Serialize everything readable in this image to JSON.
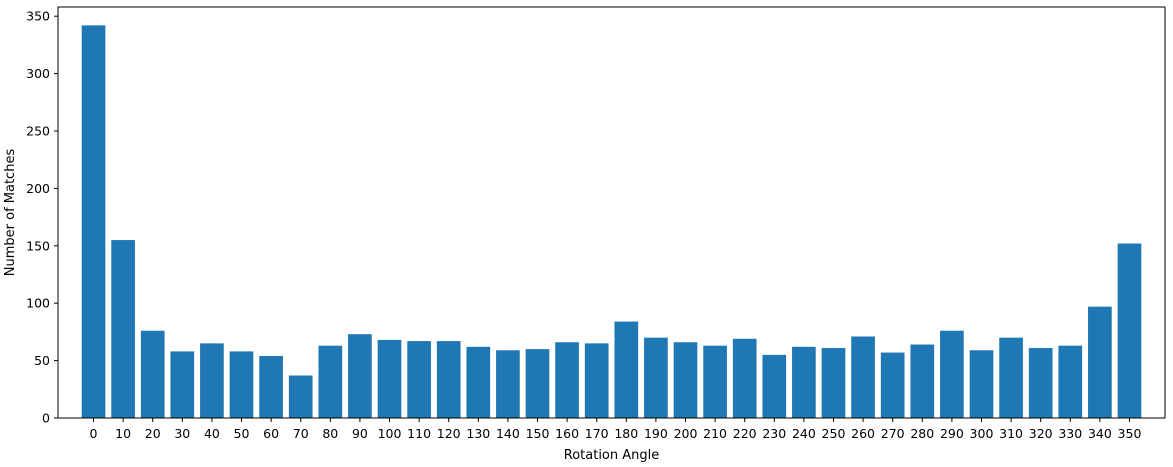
{
  "chart_data": {
    "type": "bar",
    "title": "",
    "xlabel": "Rotation Angle",
    "ylabel": "Number of Matches",
    "categories": [
      "0",
      "10",
      "20",
      "30",
      "40",
      "50",
      "60",
      "70",
      "80",
      "90",
      "100",
      "110",
      "120",
      "130",
      "140",
      "150",
      "160",
      "170",
      "180",
      "190",
      "200",
      "210",
      "220",
      "230",
      "240",
      "250",
      "260",
      "270",
      "280",
      "290",
      "300",
      "310",
      "320",
      "330",
      "340",
      "350"
    ],
    "values": [
      342,
      155,
      76,
      58,
      65,
      58,
      54,
      37,
      63,
      73,
      68,
      67,
      67,
      62,
      59,
      60,
      66,
      65,
      84,
      70,
      66,
      63,
      69,
      55,
      62,
      61,
      71,
      57,
      64,
      76,
      59,
      70,
      61,
      63,
      97,
      152
    ],
    "ylim": [
      0,
      358
    ],
    "yticks": [
      0,
      50,
      100,
      150,
      200,
      250,
      300,
      350
    ],
    "grid": false,
    "bar_color": "#1f77b4",
    "axis_color": "#000000"
  }
}
